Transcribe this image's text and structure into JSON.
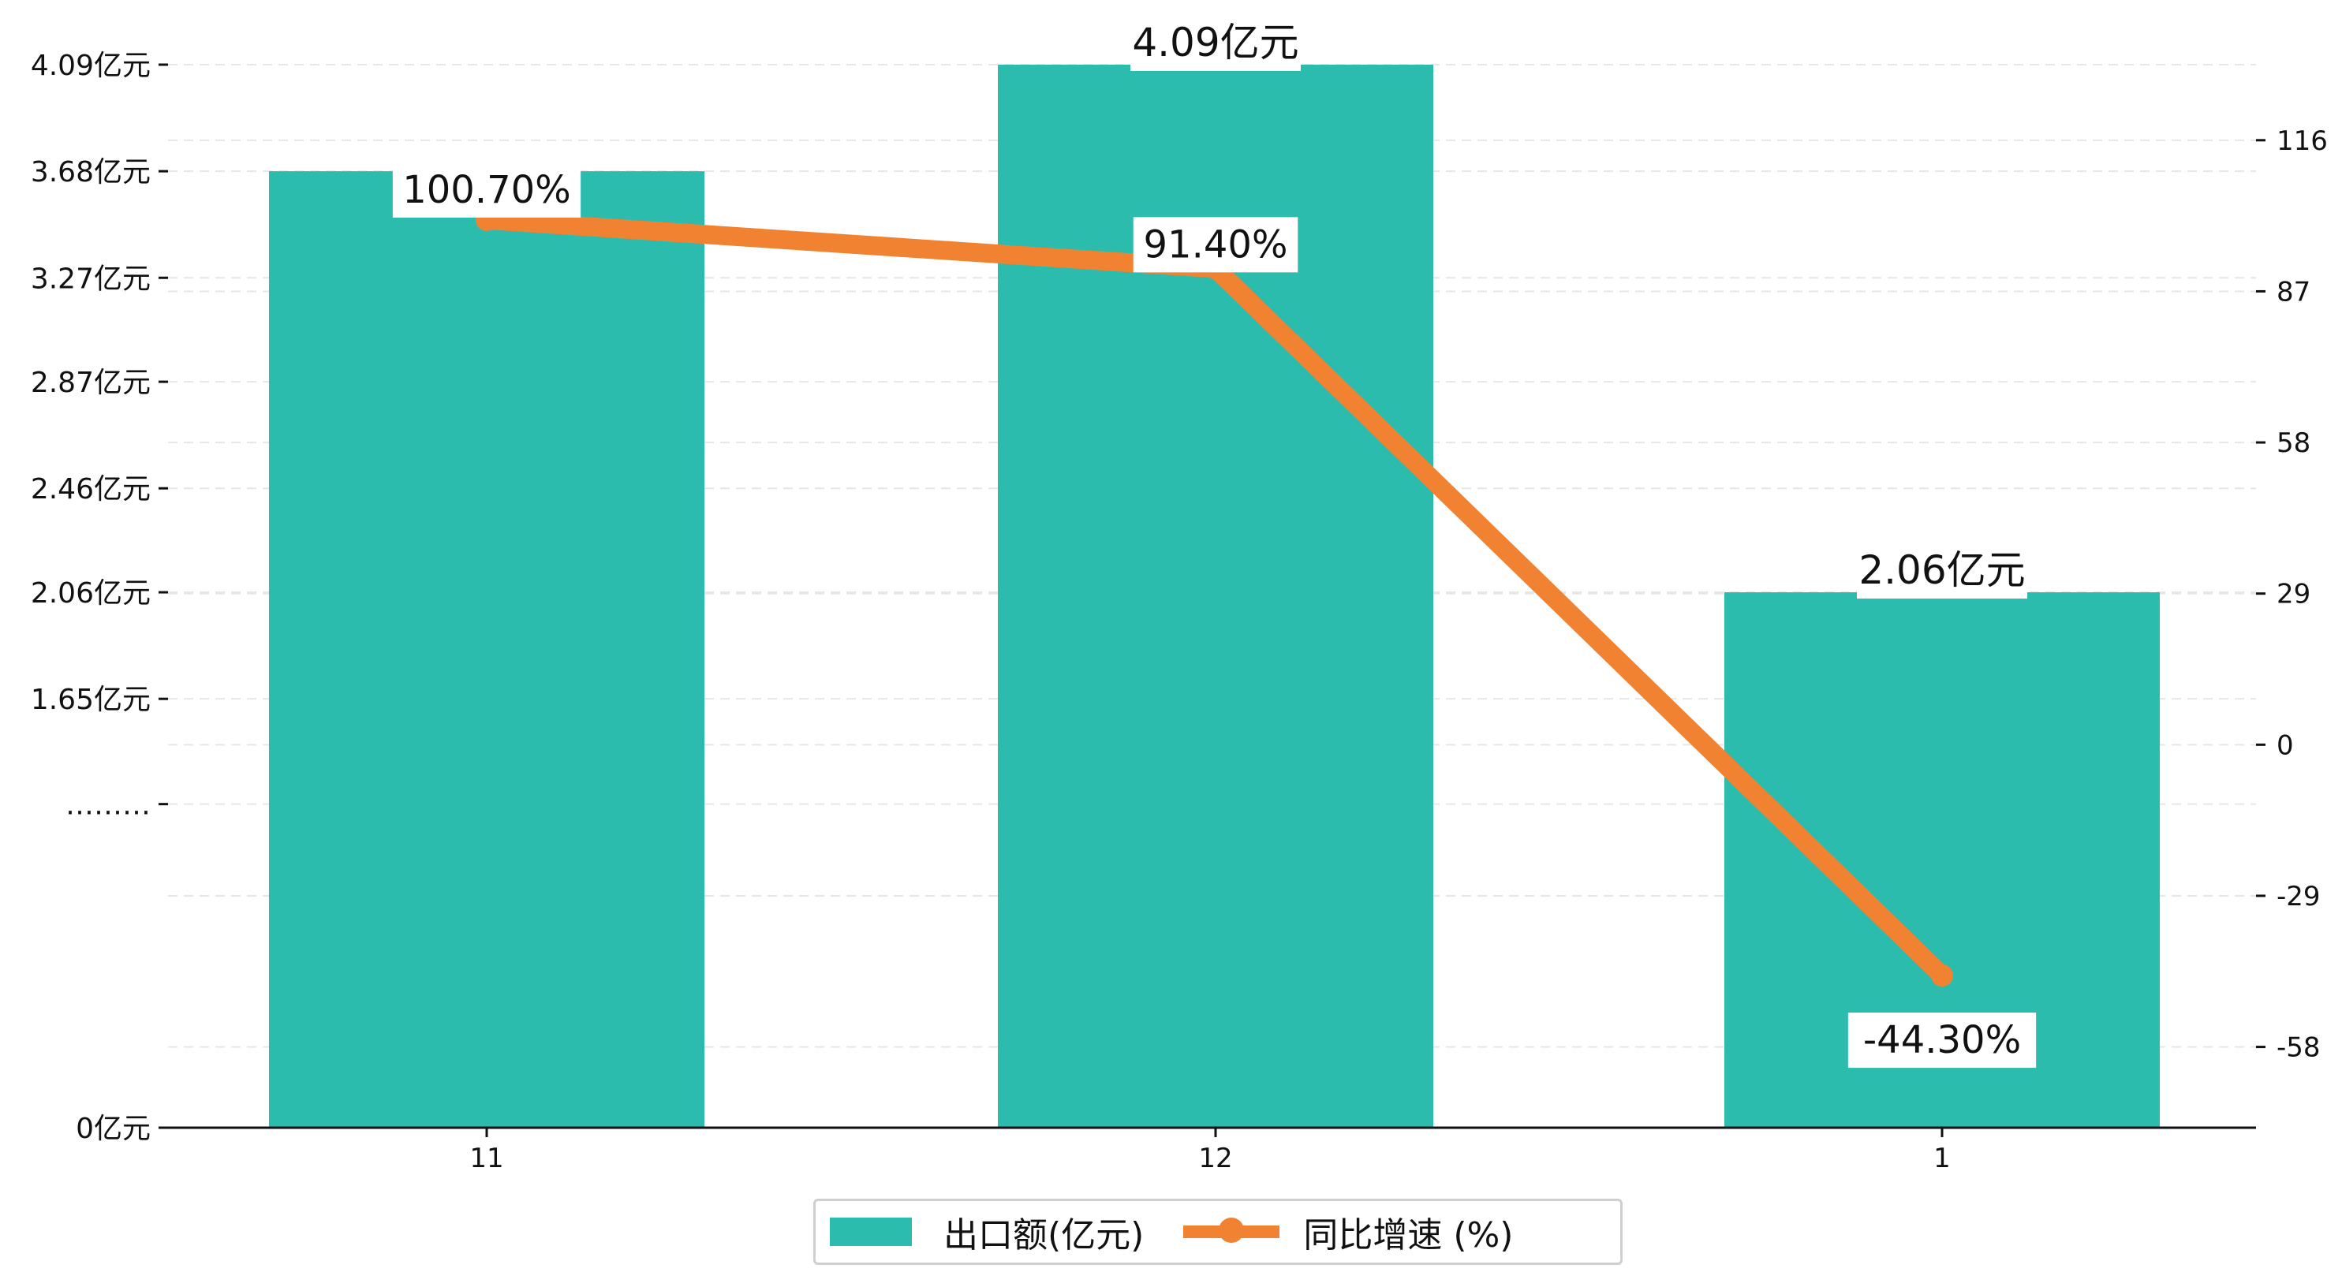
{
  "chart_data": {
    "type": "bar",
    "categories": [
      "11",
      "12",
      "1"
    ],
    "series": [
      {
        "name": "出口额(亿元)",
        "type": "bar",
        "axis": "left",
        "values": [
          3.68,
          4.09,
          2.06
        ],
        "labels": [
          "",
          "4.09亿元",
          "2.06亿元"
        ]
      },
      {
        "name": "同比增速 (%)",
        "type": "line",
        "axis": "right",
        "values": [
          100.7,
          91.4,
          -44.3
        ],
        "labels": [
          "100.70%",
          "91.40%",
          "-44.30%"
        ]
      }
    ],
    "left_axis": {
      "ylim": [
        0,
        4.09
      ],
      "ticks": [
        {
          "value": 0,
          "label": "0亿元"
        },
        {
          "value": 1.245,
          "label": "………"
        },
        {
          "value": 1.65,
          "label": "1.65亿元"
        },
        {
          "value": 2.06,
          "label": "2.06亿元"
        },
        {
          "value": 2.46,
          "label": "2.46亿元"
        },
        {
          "value": 2.87,
          "label": "2.87亿元"
        },
        {
          "value": 3.27,
          "label": "3.27亿元"
        },
        {
          "value": 3.68,
          "label": "3.68亿元"
        },
        {
          "value": 4.09,
          "label": "4.09亿元"
        }
      ]
    },
    "right_axis": {
      "ylim": [
        -73.5,
        130.5
      ],
      "ticks": [
        {
          "value": -58,
          "label": "-58"
        },
        {
          "value": -29,
          "label": "-29"
        },
        {
          "value": 0,
          "label": "0"
        },
        {
          "value": 29,
          "label": "29"
        },
        {
          "value": 58,
          "label": "58"
        },
        {
          "value": 87,
          "label": "87"
        },
        {
          "value": 116,
          "label": "116"
        }
      ]
    },
    "grid": true,
    "legend_position": "bottom-center",
    "colors": {
      "bar": "#2bbcad",
      "line": "#f08232",
      "axis": "#111111",
      "grid": "#e6e6e6"
    },
    "xlabel": "",
    "ylabel": "",
    "title": ""
  },
  "legend": {
    "bar_label": "出口额(亿元)",
    "line_label": "同比增速 (%)"
  }
}
